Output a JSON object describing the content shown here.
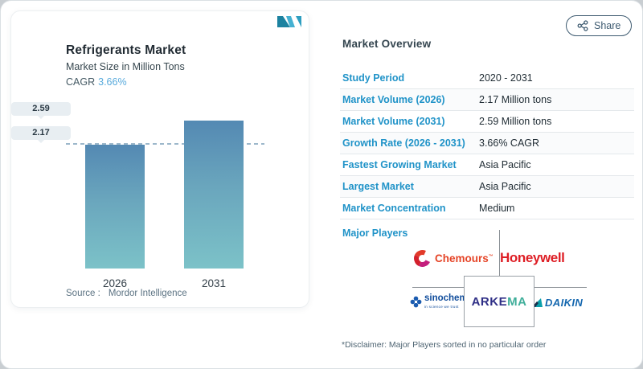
{
  "share": {
    "label": "Share"
  },
  "chart_card": {
    "title": "Refrigerants Market",
    "subtitle": "Market Size in Million Tons",
    "cagr_label": "CAGR",
    "cagr_value": "3.66%",
    "source_label": "Source :",
    "source_value": "Mordor Intelligence"
  },
  "chart_data": {
    "type": "bar",
    "title": "Refrigerants Market",
    "subtitle": "Market Size in Million Tons",
    "cagr": "3.66%",
    "categories": [
      "2026",
      "2031"
    ],
    "values": [
      2.17,
      2.59
    ],
    "value_labels": [
      "2.17",
      "2.59"
    ],
    "ylabel": "Million Tons",
    "ylim": [
      0,
      2.8
    ],
    "grid": false,
    "reference_line": 2.17,
    "bar_gradient_top": "#5489b3",
    "bar_gradient_bottom": "#7cc2c8"
  },
  "overview": {
    "title": "Market Overview",
    "rows": [
      {
        "label": "Study Period",
        "value": "2020 - 2031"
      },
      {
        "label": "Market Volume (2026)",
        "value": "2.17 Million tons"
      },
      {
        "label": "Market Volume (2031)",
        "value": "2.59 Million tons"
      },
      {
        "label": "Growth Rate (2026 - 2031)",
        "value": "3.66% CAGR"
      },
      {
        "label": "Fastest Growing Market",
        "value": "Asia Pacific"
      },
      {
        "label": "Largest Market",
        "value": "Asia Pacific"
      },
      {
        "label": "Market Concentration",
        "value": "Medium"
      }
    ]
  },
  "major_players": {
    "label": "Major Players",
    "disclaimer": "*Disclaimer: Major Players sorted in no particular order",
    "players": [
      "Chemours",
      "Honeywell",
      "sinochem",
      "ARKEMA",
      "DAIKIN"
    ],
    "chemours": {
      "name": "Chemours",
      "tm": "™"
    },
    "honeywell": {
      "name": "Honeywell"
    },
    "sinochem": {
      "name": "sinochem",
      "tagline": "in science we trust"
    },
    "arkema": {
      "part1": "ARKE",
      "part2": "MA"
    },
    "daikin": {
      "name": "DAIKIN"
    }
  },
  "colors": {
    "accent_blue": "#2093c8",
    "cagr_blue": "#58aadc",
    "bar_top": "#5489b3",
    "bar_bottom": "#7cc2c8",
    "dashed_line": "#9db8cb",
    "share_outline": "#3d5a70",
    "honeywell_red": "#de1e25",
    "chemours_red": "#e54427",
    "arkema_navy": "#2f2f86",
    "arkema_green": "#3fae9a",
    "daikin_blue": "#1467af",
    "sinochem_blue": "#0f4c9b"
  }
}
